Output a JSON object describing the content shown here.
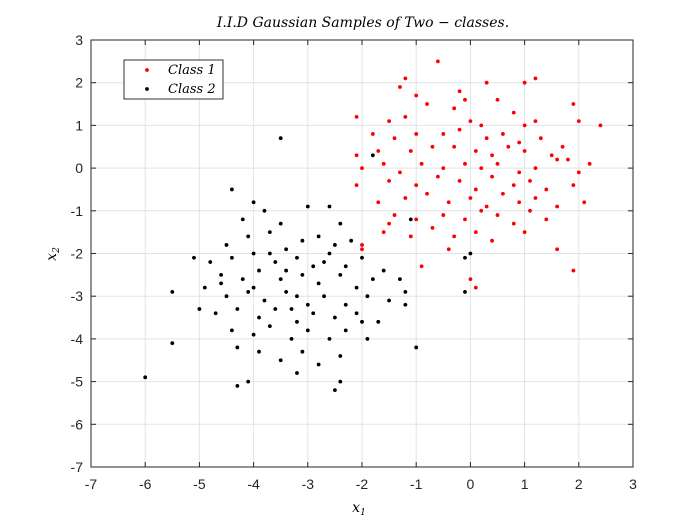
{
  "chart_data": {
    "type": "scatter",
    "title": "I.I.D Gaussian Samples of Two − classes.",
    "xlabel": "x",
    "xlabel_sub": "1",
    "ylabel": "x",
    "ylabel_sub": "2",
    "xlim": [
      -7,
      3
    ],
    "ylim": [
      -7,
      3
    ],
    "xticks": [
      -7,
      -6,
      -5,
      -4,
      -3,
      -2,
      -1,
      0,
      1,
      2,
      3
    ],
    "yticks": [
      -7,
      -6,
      -5,
      -4,
      -3,
      -2,
      -1,
      0,
      1,
      2,
      3
    ],
    "grid": true,
    "legend_position": "top-left",
    "series": [
      {
        "name": "Class 1",
        "color": "#ff0000",
        "points": [
          [
            -0.6,
            2.5
          ],
          [
            -1.2,
            2.1
          ],
          [
            -1.3,
            1.9
          ],
          [
            0.3,
            2.0
          ],
          [
            1.0,
            2.0
          ],
          [
            1.2,
            2.1
          ],
          [
            -1.0,
            1.7
          ],
          [
            -0.2,
            1.8
          ],
          [
            -0.8,
            1.5
          ],
          [
            -0.3,
            1.4
          ],
          [
            -0.1,
            1.6
          ],
          [
            0.5,
            1.6
          ],
          [
            0.8,
            1.3
          ],
          [
            1.9,
            1.5
          ],
          [
            -2.1,
            1.2
          ],
          [
            -1.5,
            1.1
          ],
          [
            -1.2,
            1.2
          ],
          [
            0.0,
            1.1
          ],
          [
            0.2,
            1.0
          ],
          [
            1.0,
            1.0
          ],
          [
            1.2,
            1.1
          ],
          [
            2.0,
            1.1
          ],
          [
            2.4,
            1.0
          ],
          [
            -1.8,
            0.8
          ],
          [
            -1.4,
            0.7
          ],
          [
            -1.0,
            0.8
          ],
          [
            -0.5,
            0.8
          ],
          [
            -0.2,
            0.9
          ],
          [
            0.3,
            0.7
          ],
          [
            0.6,
            0.8
          ],
          [
            0.9,
            0.6
          ],
          [
            1.3,
            0.7
          ],
          [
            1.7,
            0.5
          ],
          [
            -2.1,
            0.3
          ],
          [
            -1.7,
            0.4
          ],
          [
            -1.1,
            0.4
          ],
          [
            -0.7,
            0.5
          ],
          [
            -0.3,
            0.5
          ],
          [
            0.1,
            0.4
          ],
          [
            0.4,
            0.3
          ],
          [
            0.7,
            0.5
          ],
          [
            1.0,
            0.4
          ],
          [
            1.5,
            0.3
          ],
          [
            1.8,
            0.2
          ],
          [
            2.2,
            0.1
          ],
          [
            -2.0,
            0.0
          ],
          [
            -1.6,
            0.1
          ],
          [
            -1.3,
            -0.1
          ],
          [
            -0.9,
            0.1
          ],
          [
            -0.5,
            0.0
          ],
          [
            -0.1,
            0.1
          ],
          [
            0.2,
            0.0
          ],
          [
            0.5,
            0.1
          ],
          [
            0.9,
            -0.1
          ],
          [
            1.2,
            0.0
          ],
          [
            1.6,
            0.2
          ],
          [
            2.0,
            -0.1
          ],
          [
            -2.1,
            -0.4
          ],
          [
            -1.5,
            -0.3
          ],
          [
            -1.0,
            -0.4
          ],
          [
            -0.6,
            -0.2
          ],
          [
            -0.2,
            -0.3
          ],
          [
            0.1,
            -0.5
          ],
          [
            0.4,
            -0.2
          ],
          [
            0.8,
            -0.4
          ],
          [
            1.1,
            -0.3
          ],
          [
            1.4,
            -0.5
          ],
          [
            1.9,
            -0.4
          ],
          [
            -1.7,
            -0.8
          ],
          [
            -1.2,
            -0.7
          ],
          [
            -0.8,
            -0.6
          ],
          [
            -0.4,
            -0.8
          ],
          [
            0.0,
            -0.7
          ],
          [
            0.3,
            -0.9
          ],
          [
            0.6,
            -0.6
          ],
          [
            0.9,
            -0.8
          ],
          [
            1.2,
            -0.7
          ],
          [
            1.6,
            -0.9
          ],
          [
            2.1,
            -0.8
          ],
          [
            -1.4,
            -1.1
          ],
          [
            -1.0,
            -1.2
          ],
          [
            -0.5,
            -1.1
          ],
          [
            -0.1,
            -1.2
          ],
          [
            0.2,
            -1.0
          ],
          [
            0.5,
            -1.1
          ],
          [
            0.8,
            -1.3
          ],
          [
            1.1,
            -1.0
          ],
          [
            1.4,
            -1.2
          ],
          [
            -1.6,
            -1.5
          ],
          [
            -1.1,
            -1.6
          ],
          [
            -0.7,
            -1.4
          ],
          [
            -0.3,
            -1.6
          ],
          [
            0.1,
            -1.5
          ],
          [
            0.4,
            -1.7
          ],
          [
            1.0,
            -1.5
          ],
          [
            -2.0,
            -1.9
          ],
          [
            -0.9,
            -2.3
          ],
          [
            0.0,
            -2.6
          ],
          [
            0.1,
            -2.8
          ],
          [
            1.6,
            -1.9
          ],
          [
            1.9,
            -2.4
          ],
          [
            -2.0,
            -1.8
          ],
          [
            -1.5,
            -1.3
          ],
          [
            -0.4,
            -1.9
          ]
        ]
      },
      {
        "name": "Class 2",
        "color": "#000000",
        "points": [
          [
            -4.4,
            -0.5
          ],
          [
            -4.0,
            -0.8
          ],
          [
            -4.2,
            -1.2
          ],
          [
            -3.8,
            -1.0
          ],
          [
            -3.5,
            -1.3
          ],
          [
            -3.0,
            -0.9
          ],
          [
            -2.6,
            -0.9
          ],
          [
            -2.4,
            -1.3
          ],
          [
            -4.5,
            -1.8
          ],
          [
            -4.1,
            -1.6
          ],
          [
            -3.7,
            -1.5
          ],
          [
            -3.4,
            -1.9
          ],
          [
            -3.1,
            -1.7
          ],
          [
            -2.8,
            -1.6
          ],
          [
            -2.5,
            -1.8
          ],
          [
            -2.2,
            -1.7
          ],
          [
            -4.8,
            -2.2
          ],
          [
            -4.4,
            -2.1
          ],
          [
            -4.0,
            -2.0
          ],
          [
            -3.6,
            -2.2
          ],
          [
            -3.2,
            -2.1
          ],
          [
            -2.9,
            -2.3
          ],
          [
            -2.6,
            -2.0
          ],
          [
            -2.3,
            -2.3
          ],
          [
            -2.0,
            -2.1
          ],
          [
            -1.6,
            -2.4
          ],
          [
            -5.1,
            -2.1
          ],
          [
            -4.6,
            -2.5
          ],
          [
            -4.2,
            -2.6
          ],
          [
            -3.9,
            -2.4
          ],
          [
            -3.5,
            -2.6
          ],
          [
            -3.1,
            -2.5
          ],
          [
            -2.8,
            -2.7
          ],
          [
            -2.4,
            -2.5
          ],
          [
            -2.1,
            -2.8
          ],
          [
            -1.8,
            -2.6
          ],
          [
            -5.5,
            -2.9
          ],
          [
            -4.9,
            -2.8
          ],
          [
            -4.5,
            -3.0
          ],
          [
            -4.1,
            -2.9
          ],
          [
            -3.8,
            -3.1
          ],
          [
            -3.4,
            -2.9
          ],
          [
            -3.0,
            -3.2
          ],
          [
            -2.7,
            -3.0
          ],
          [
            -2.3,
            -3.2
          ],
          [
            -1.9,
            -3.0
          ],
          [
            -1.5,
            -3.1
          ],
          [
            -5.0,
            -3.3
          ],
          [
            -4.7,
            -3.4
          ],
          [
            -4.3,
            -3.3
          ],
          [
            -3.9,
            -3.5
          ],
          [
            -3.6,
            -3.3
          ],
          [
            -3.2,
            -3.6
          ],
          [
            -2.9,
            -3.4
          ],
          [
            -2.5,
            -3.5
          ],
          [
            -2.1,
            -3.4
          ],
          [
            -1.7,
            -3.6
          ],
          [
            -1.2,
            -3.2
          ],
          [
            -4.4,
            -3.8
          ],
          [
            -4.0,
            -3.9
          ],
          [
            -3.7,
            -3.7
          ],
          [
            -3.3,
            -4.0
          ],
          [
            -3.0,
            -3.8
          ],
          [
            -2.6,
            -4.0
          ],
          [
            -2.3,
            -3.8
          ],
          [
            -1.9,
            -4.0
          ],
          [
            -4.3,
            -4.2
          ],
          [
            -3.9,
            -4.3
          ],
          [
            -3.5,
            -4.5
          ],
          [
            -3.1,
            -4.3
          ],
          [
            -2.8,
            -4.6
          ],
          [
            -2.4,
            -4.4
          ],
          [
            -1.0,
            -4.2
          ],
          [
            -5.5,
            -4.1
          ],
          [
            -6.0,
            -4.9
          ],
          [
            -4.3,
            -5.1
          ],
          [
            -4.1,
            -5.0
          ],
          [
            -3.2,
            -4.8
          ],
          [
            -2.5,
            -5.2
          ],
          [
            -2.4,
            -5.0
          ],
          [
            -3.4,
            -2.4
          ],
          [
            -3.2,
            -3.0
          ],
          [
            -2.0,
            -3.6
          ],
          [
            -1.2,
            -2.9
          ],
          [
            -1.3,
            -2.6
          ],
          [
            -3.5,
            0.7
          ],
          [
            -1.8,
            0.3
          ],
          [
            -1.1,
            -1.2
          ],
          [
            0.0,
            -2.0
          ],
          [
            -0.1,
            -2.1
          ],
          [
            -0.1,
            -2.9
          ],
          [
            -4.0,
            -2.8
          ],
          [
            -3.7,
            -2.0
          ],
          [
            -3.3,
            -3.3
          ],
          [
            -2.7,
            -2.2
          ],
          [
            -4.6,
            -2.7
          ]
        ]
      }
    ]
  }
}
